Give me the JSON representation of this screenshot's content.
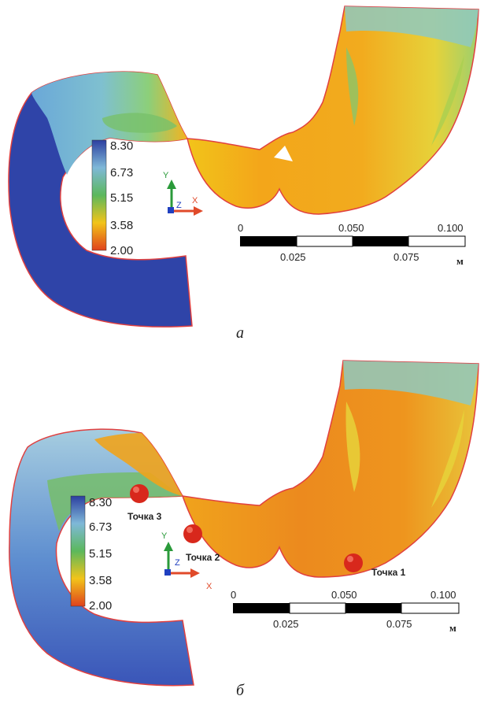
{
  "panels": [
    {
      "id": "a",
      "caption": "а",
      "legend": {
        "values": [
          "8.30",
          "6.73",
          "5.15",
          "3.58",
          "2.00"
        ]
      },
      "scale": {
        "top_ticks": [
          "0",
          "0.050",
          "0.100"
        ],
        "bottom_ticks": [
          "0.025",
          "0.075"
        ],
        "unit": "м"
      },
      "axes": {
        "x": "X",
        "y": "Y",
        "z": "Z"
      },
      "points": []
    },
    {
      "id": "b",
      "caption": "б",
      "legend": {
        "values": [
          "8.30",
          "6.73",
          "5.15",
          "3.58",
          "2.00"
        ]
      },
      "scale": {
        "top_ticks": [
          "0",
          "0.050",
          "0.100"
        ],
        "bottom_ticks": [
          "0.025",
          "0.075"
        ],
        "unit": "м"
      },
      "axes": {
        "x": "X",
        "y": "Y",
        "z": "Z"
      },
      "points": [
        "Точка 1",
        "Точка 2",
        "Точка 3"
      ]
    }
  ],
  "colors": {
    "scale_max": "#2c3fa0",
    "scale_high": "#7fb8d8",
    "scale_mid": "#5cb85c",
    "scale_low": "#f2c41a",
    "scale_min": "#e0421c",
    "probe_point": "#d8281c"
  }
}
